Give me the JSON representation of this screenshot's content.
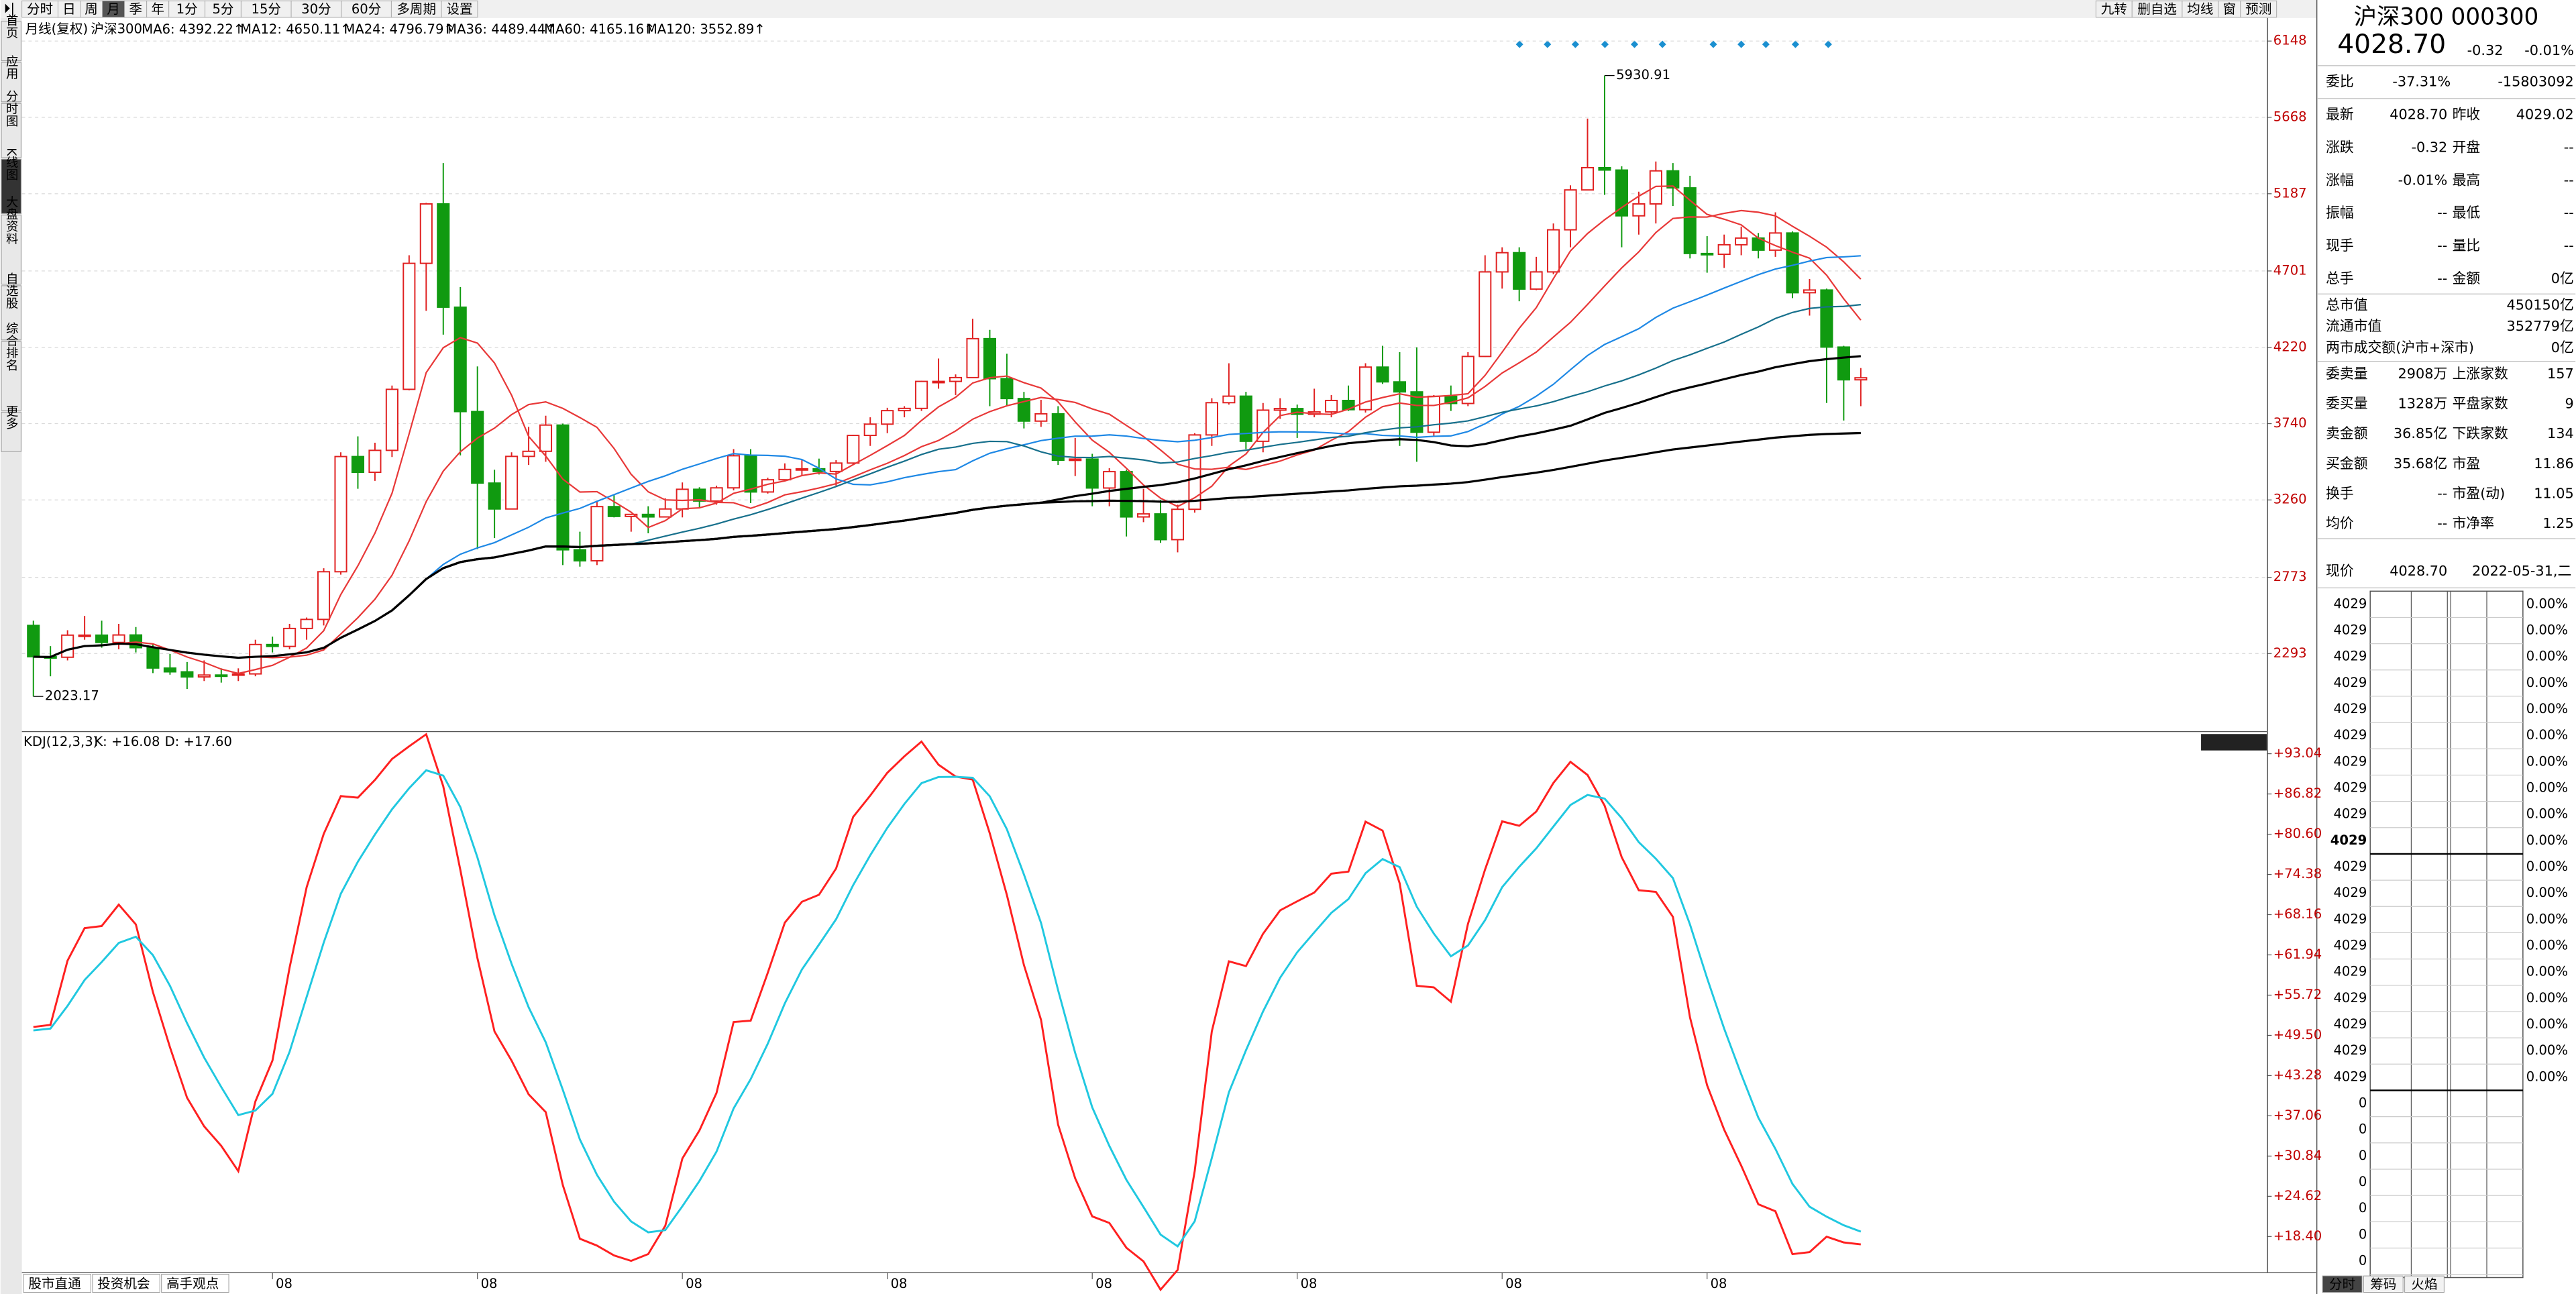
{
  "toolbar": {
    "left_buttons": [
      "分时",
      "日",
      "周",
      "月",
      "季",
      "年",
      "1分",
      "5分",
      "15分",
      "30分",
      "60分",
      "多周期",
      "设置"
    ],
    "active": "月",
    "right_buttons": [
      "九转",
      "删自选",
      "均线",
      "窗",
      "预测"
    ]
  },
  "side_tabs": [
    "首页",
    "应用",
    "分时图",
    "K线图",
    "大盘资料",
    "自选股",
    "综合排名",
    "更多"
  ],
  "kline": {
    "title": "月线(复权)",
    "name": "沪深300",
    "ma": [
      {
        "name": "MA6",
        "value": ": 4392.22↑",
        "color": "#e83838"
      },
      {
        "name": "MA12",
        "value": ": 4650.11↑",
        "color": "#e83838"
      },
      {
        "name": "MA24",
        "value": ": 4796.79↑",
        "color": "#1e88e5"
      },
      {
        "name": "MA36",
        "value": ": 4489.44↑",
        "color": "#17708c"
      },
      {
        "name": "MA60",
        "value": ": 4165.16↑",
        "color": "#000000"
      },
      {
        "name": "MA120",
        "value": ": 3552.89↑",
        "color": "#000000"
      }
    ],
    "ylim": [
      2293,
      6148
    ],
    "yticks": [
      6148,
      5668,
      5187,
      4701,
      4220,
      3740,
      3260,
      2773,
      2293
    ],
    "high_label": "5930.91",
    "low_label": "2023.17",
    "x_labels": [
      "08",
      "08",
      "08",
      "08",
      "08",
      "08",
      "08",
      "08"
    ],
    "candles": [
      [
        2470,
        2500,
        2023.17,
        2273
      ],
      [
        2273,
        2340,
        2150,
        2270
      ],
      [
        2270,
        2440,
        2250,
        2409
      ],
      [
        2409,
        2530,
        2380,
        2409
      ],
      [
        2409,
        2500,
        2330,
        2363
      ],
      [
        2363,
        2480,
        2320,
        2410
      ],
      [
        2410,
        2460,
        2300,
        2330
      ],
      [
        2330,
        2350,
        2170,
        2202
      ],
      [
        2202,
        2290,
        2160,
        2178
      ],
      [
        2178,
        2240,
        2070,
        2146
      ],
      [
        2146,
        2250,
        2120,
        2158
      ],
      [
        2158,
        2200,
        2110,
        2157
      ],
      [
        2157,
        2200,
        2120,
        2165
      ],
      [
        2165,
        2380,
        2150,
        2350
      ],
      [
        2350,
        2400,
        2300,
        2338
      ],
      [
        2338,
        2480,
        2320,
        2451
      ],
      [
        2451,
        2520,
        2380,
        2508
      ],
      [
        2508,
        2830,
        2470,
        2808
      ],
      [
        2808,
        3560,
        2790,
        3533
      ],
      [
        3533,
        3660,
        3330,
        3434
      ],
      [
        3434,
        3620,
        3380,
        3572
      ],
      [
        3572,
        3980,
        3530,
        3956
      ],
      [
        3956,
        4800,
        3950,
        4749
      ],
      [
        4749,
        5130,
        4450,
        5123
      ],
      [
        5123,
        5380,
        4300,
        4473
      ],
      [
        4473,
        4600,
        3540,
        3816
      ],
      [
        3816,
        4100,
        2950,
        3366
      ],
      [
        3366,
        3450,
        3020,
        3203
      ],
      [
        3203,
        3560,
        3200,
        3534
      ],
      [
        3534,
        3720,
        3480,
        3566
      ],
      [
        3566,
        3790,
        3500,
        3731
      ],
      [
        3731,
        3740,
        2850,
        2946
      ],
      [
        2946,
        3060,
        2840,
        2877
      ],
      [
        2877,
        3250,
        2850,
        3218
      ],
      [
        3218,
        3290,
        3150,
        3156
      ],
      [
        3156,
        3170,
        3060,
        3169
      ],
      [
        3169,
        3220,
        3050,
        3153
      ],
      [
        3153,
        3270,
        3150,
        3203
      ],
      [
        3203,
        3370,
        3150,
        3327
      ],
      [
        3327,
        3340,
        3210,
        3253
      ],
      [
        3253,
        3350,
        3230,
        3336
      ],
      [
        3336,
        3580,
        3320,
        3538
      ],
      [
        3538,
        3580,
        3240,
        3310
      ],
      [
        3310,
        3400,
        3300,
        3387
      ],
      [
        3387,
        3490,
        3380,
        3452
      ],
      [
        3452,
        3510,
        3410,
        3456
      ],
      [
        3456,
        3520,
        3420,
        3439
      ],
      [
        3439,
        3510,
        3350,
        3492
      ],
      [
        3492,
        3670,
        3480,
        3666
      ],
      [
        3666,
        3780,
        3600,
        3737
      ],
      [
        3737,
        3840,
        3680,
        3822
      ],
      [
        3822,
        3850,
        3780,
        3836
      ],
      [
        3836,
        4010,
        3820,
        4006
      ],
      [
        4006,
        4150,
        3960,
        4006
      ],
      [
        4006,
        4050,
        3920,
        4030
      ],
      [
        4030,
        4400,
        4030,
        4275
      ],
      [
        4275,
        4330,
        3850,
        4023
      ],
      [
        4023,
        4180,
        3850,
        3898
      ],
      [
        3898,
        3940,
        3710,
        3756
      ],
      [
        3756,
        3890,
        3720,
        3802
      ],
      [
        3802,
        3850,
        3480,
        3510
      ],
      [
        3510,
        3650,
        3410,
        3517
      ],
      [
        3517,
        3550,
        3220,
        3335
      ],
      [
        3335,
        3460,
        3220,
        3438
      ],
      [
        3438,
        3450,
        3030,
        3153
      ],
      [
        3153,
        3330,
        3120,
        3172
      ],
      [
        3172,
        3260,
        2990,
        3010
      ],
      [
        3010,
        3230,
        2930,
        3201
      ],
      [
        3201,
        3680,
        3180,
        3669
      ],
      [
        3669,
        3900,
        3600,
        3872
      ],
      [
        3872,
        4120,
        3860,
        3913
      ],
      [
        3913,
        3940,
        3580,
        3629
      ],
      [
        3629,
        3870,
        3560,
        3825
      ],
      [
        3825,
        3900,
        3770,
        3835
      ],
      [
        3835,
        3860,
        3650,
        3799
      ],
      [
        3799,
        3960,
        3780,
        3814
      ],
      [
        3814,
        3920,
        3780,
        3886
      ],
      [
        3886,
        3980,
        3820,
        3828
      ],
      [
        3828,
        4120,
        3810,
        4096
      ],
      [
        4096,
        4230,
        3990,
        4003
      ],
      [
        4003,
        4190,
        3600,
        3940
      ],
      [
        3940,
        4220,
        3500,
        3686
      ],
      [
        3686,
        3920,
        3660,
        3912
      ],
      [
        3912,
        3980,
        3820,
        3867
      ],
      [
        3867,
        4190,
        3850,
        4163
      ],
      [
        4163,
        4800,
        4160,
        4695
      ],
      [
        4695,
        4850,
        4590,
        4816
      ],
      [
        4816,
        4850,
        4510,
        4587
      ],
      [
        4587,
        4790,
        4580,
        4695
      ],
      [
        4695,
        5000,
        4680,
        4960
      ],
      [
        4960,
        5240,
        4850,
        5211
      ],
      [
        5211,
        5660,
        5210,
        5351
      ],
      [
        5351,
        5930.91,
        5180,
        5336
      ],
      [
        5336,
        5360,
        4850,
        5048
      ],
      [
        5048,
        5200,
        4930,
        5123
      ],
      [
        5123,
        5390,
        5000,
        5331
      ],
      [
        5331,
        5380,
        5110,
        5224
      ],
      [
        5224,
        5300,
        4780,
        4811
      ],
      [
        4811,
        4920,
        4690,
        4806
      ],
      [
        4806,
        4930,
        4720,
        4866
      ],
      [
        4866,
        4980,
        4800,
        4908
      ],
      [
        4908,
        4940,
        4780,
        4832
      ],
      [
        4832,
        5070,
        4790,
        4940
      ],
      [
        4940,
        4950,
        4530,
        4564
      ],
      [
        4564,
        4650,
        4420,
        4581
      ],
      [
        4581,
        4590,
        3870,
        4222
      ],
      [
        4222,
        4230,
        3760,
        4016
      ],
      [
        4016,
        4090,
        3850,
        4028.7
      ]
    ]
  },
  "kdj": {
    "label": "KDJ(12,3,3)",
    "k": "K: +16.08",
    "d": "D: +17.60",
    "k_color": "#ff2020",
    "d_color": "#20c8e0",
    "yticks": [
      {
        "value": 93.04,
        "label": "+93.04"
      },
      {
        "value": 86.82,
        "label": "+86.82"
      },
      {
        "value": 80.6,
        "label": "+80.60"
      },
      {
        "value": 74.38,
        "label": "+74.38"
      },
      {
        "value": 68.16,
        "label": "+68.16"
      },
      {
        "value": 61.94,
        "label": "+61.94"
      },
      {
        "value": 55.72,
        "label": "+55.72"
      },
      {
        "value": 49.5,
        "label": "+49.50"
      },
      {
        "value": 43.28,
        "label": "+43.28"
      },
      {
        "value": 37.06,
        "label": "+37.06"
      },
      {
        "value": 30.84,
        "label": "+30.84"
      },
      {
        "value": 24.62,
        "label": "+24.62"
      },
      {
        "value": 18.4,
        "label": "+18.40"
      }
    ]
  },
  "bottom_tabs": [
    "股市直通",
    "投资机会",
    "高手观点"
  ],
  "quote": {
    "title": "沪深300 000300",
    "price": "4028.70",
    "change": "-0.32",
    "pct": "-0.01%",
    "weibi": {
      "label": "委比",
      "v1": "-37.31%",
      "v2": "-15803092"
    },
    "rows": [
      [
        "最新",
        "4028.70",
        "昨收",
        "4029.02"
      ],
      [
        "涨跌",
        "-0.32",
        "开盘",
        "--"
      ],
      [
        "涨幅",
        "-0.01%",
        "最高",
        "--"
      ],
      [
        "振幅",
        "--",
        "最低",
        "--"
      ],
      [
        "现手",
        "--",
        "量比",
        "--"
      ],
      [
        "总手",
        "--",
        "金额",
        "0亿"
      ]
    ],
    "caps": [
      [
        "总市值",
        "450150亿"
      ],
      [
        "流通市值",
        "352779亿"
      ],
      [
        "两市成交额(沪市+深市)",
        "0亿"
      ]
    ],
    "rows2": [
      [
        "委卖量",
        "2908万",
        "上涨家数",
        "157"
      ],
      [
        "委买量",
        "1328万",
        "平盘家数",
        "9"
      ],
      [
        "卖金额",
        "36.85亿",
        "下跌家数",
        "134"
      ],
      [
        "买金额",
        "35.68亿",
        "市盈",
        "11.86"
      ],
      [
        "换手",
        "--",
        "市盈(动)",
        "11.05"
      ],
      [
        "均价",
        "--",
        "市净率",
        "1.25"
      ]
    ],
    "now": {
      "label": "现价",
      "price": "4028.70",
      "date": "2022-05-31,二"
    },
    "book": [
      [
        "4029",
        "0.00%"
      ],
      [
        "4029",
        "0.00%"
      ],
      [
        "4029",
        "0.00%"
      ],
      [
        "4029",
        "0.00%"
      ],
      [
        "4029",
        "0.00%"
      ],
      [
        "4029",
        "0.00%"
      ],
      [
        "4029",
        "0.00%"
      ],
      [
        "4029",
        "0.00%"
      ],
      [
        "4029",
        "0.00%"
      ],
      [
        "4029",
        "0.00%"
      ],
      [
        "4029",
        "0.00%"
      ],
      [
        "4029",
        "0.00%"
      ],
      [
        "4029",
        "0.00%"
      ],
      [
        "4029",
        "0.00%"
      ],
      [
        "4029",
        "0.00%"
      ],
      [
        "4029",
        "0.00%"
      ],
      [
        "4029",
        "0.00%"
      ],
      [
        "4029",
        "0.00%"
      ],
      [
        "4029",
        "0.00%"
      ],
      [
        "0"
      ],
      [
        "0"
      ],
      [
        "0"
      ],
      [
        "0"
      ],
      [
        "0"
      ],
      [
        "0"
      ],
      [
        "0"
      ]
    ],
    "tabs": [
      "分时",
      "筹码",
      "火焰"
    ]
  }
}
